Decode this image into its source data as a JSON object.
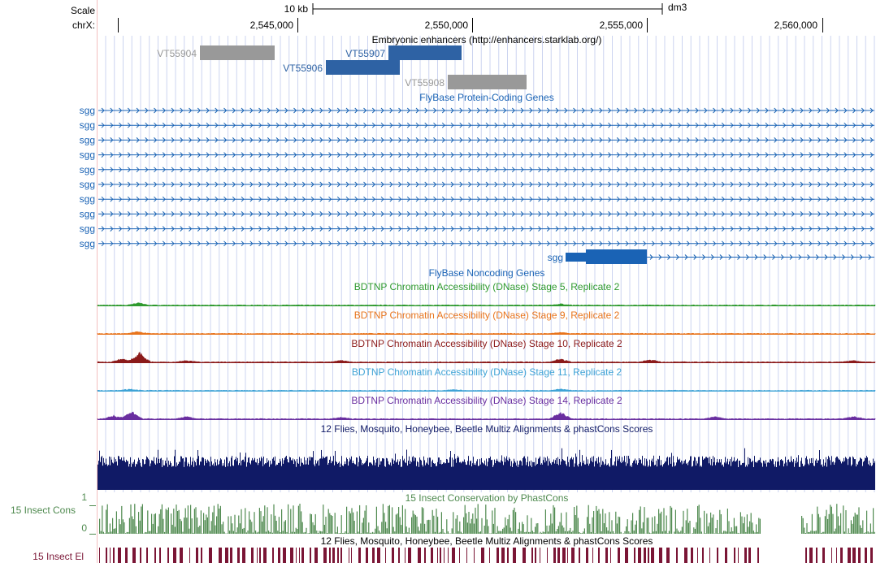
{
  "colors": {
    "text": "#000000",
    "gene_blue": "#1a63b5",
    "enhancer_active": "#2e62a4",
    "enhancer_inactive": "#999999",
    "grid": "#b7c3ea",
    "left_edge": "#f4bfbf",
    "multiz": "#101a66",
    "phastcons": "#4f8a4f",
    "elements": "#7a1535"
  },
  "ruler": {
    "scale_label": "Scale",
    "chrom_label": "chrX:",
    "scale_bar_label": "10 kb",
    "assembly": "dm3",
    "ticks": [
      "2,545,000",
      "2,550,000",
      "2,555,000",
      "2,560,000"
    ]
  },
  "enhancers": {
    "title": "Embryonic enhancers (http://enhancers.starklab.org/)",
    "items": [
      {
        "name": "VT55904",
        "active": false
      },
      {
        "name": "VT55907",
        "active": true
      },
      {
        "name": "VT55906",
        "active": true
      },
      {
        "name": "VT55908",
        "active": false
      }
    ]
  },
  "flybase_coding": {
    "title": "FlyBase Protein-Coding Genes",
    "transcripts": [
      "sgg",
      "sgg",
      "sgg",
      "sgg",
      "sgg",
      "sgg",
      "sgg",
      "sgg",
      "sgg",
      "sgg"
    ],
    "partial_transcript": "sgg"
  },
  "flybase_noncoding": {
    "title": "FlyBase Noncoding Genes"
  },
  "dnase": [
    {
      "title": "BDTNP Chromatin Accessibility (DNase) Stage 5, Replicate 2",
      "color": "#2f9a2f"
    },
    {
      "title": "BDTNP Chromatin Accessibility (DNase) Stage 9, Replicate 2",
      "color": "#e8741c"
    },
    {
      "title": "BDTNP Chromatin Accessibility (DNase) Stage 10, Replicate 2",
      "color": "#8b1a1a"
    },
    {
      "title": "BDTNP Chromatin Accessibility (DNase) Stage 11, Replicate 2",
      "color": "#3ea3d6"
    },
    {
      "title": "BDTNP Chromatin Accessibility (DNase) Stage 14, Replicate 2",
      "color": "#6a2fa0"
    }
  ],
  "multiz": {
    "title": "12 Flies, Mosquito, Honeybee, Beetle Multiz Alignments & phastCons Scores"
  },
  "phastcons": {
    "title": "15 Insect Conservation by PhastCons",
    "side_label": "15 Insect Cons",
    "axis_max": "1",
    "axis_min": "0"
  },
  "elements": {
    "title": "12 Flies, Mosquito, Honeybee, Beetle Multiz Alignments & phastCons Scores",
    "side_label": "15 Insect El"
  }
}
